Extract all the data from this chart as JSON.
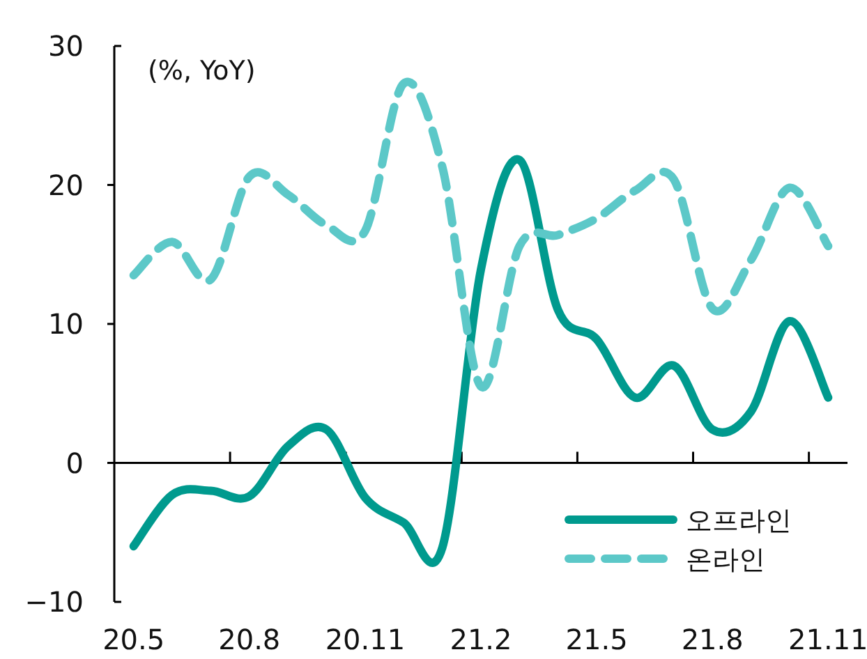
{
  "chart_data": {
    "type": "line",
    "ylabel": "(%, YoY)",
    "categories": [
      "20.5",
      null,
      null,
      "20.8",
      null,
      null,
      "20.11",
      null,
      null,
      "21.2",
      null,
      null,
      "21.5",
      null,
      null,
      "21.8",
      null,
      null,
      "21.11"
    ],
    "series": [
      {
        "name": "오프라인",
        "color": "#009a8e",
        "line_style": "solid",
        "values": [
          -6.0,
          -2.3,
          -2.0,
          -2.4,
          1.2,
          2.4,
          -2.5,
          -4.3,
          -6.1,
          13.9,
          21.8,
          11.0,
          8.9,
          4.7,
          7.0,
          2.4,
          3.7,
          10.2,
          4.7
        ]
      },
      {
        "name": "온라인",
        "color": "#5cc8c8",
        "line_style": "dashed",
        "values": [
          13.5,
          15.9,
          13.2,
          20.6,
          19.3,
          17.1,
          16.7,
          27.3,
          21.3,
          5.5,
          15.6,
          16.4,
          17.6,
          19.6,
          20.4,
          11.1,
          14.6,
          19.8,
          15.6
        ]
      }
    ],
    "ylim": [
      -10,
      30
    ],
    "yticks": [
      -10,
      0,
      10,
      20,
      30
    ],
    "legend": "bottom right",
    "marker": "none"
  }
}
